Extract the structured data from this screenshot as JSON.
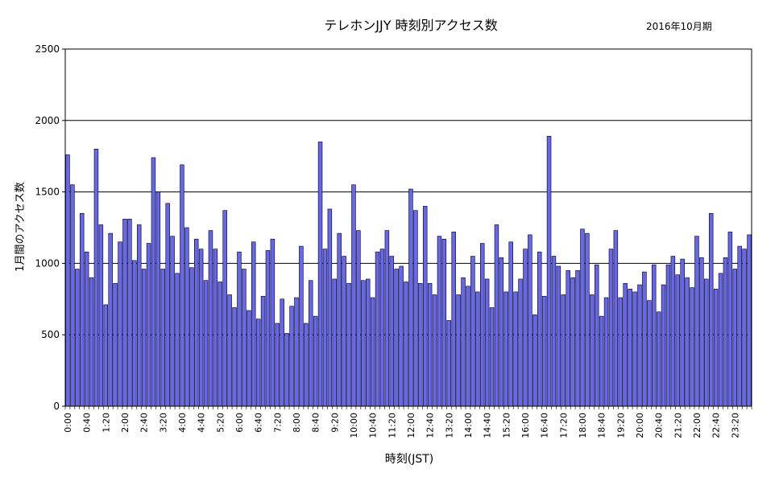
{
  "chart_data": {
    "type": "bar",
    "title": "テレホンJJY  時刻別アクセス数",
    "subtitle": "2016年10月期",
    "xlabel": "時刻(JST)",
    "ylabel": "1月間のアクセス数",
    "ylim": [
      0,
      2500
    ],
    "yticks": [
      0,
      500,
      1000,
      1500,
      2000,
      2500
    ],
    "grid": true,
    "bar_color": "#6666ee",
    "bar_edge_color": "#000000",
    "tick_labels": [
      "0:00",
      "0:40",
      "1:20",
      "2:00",
      "2:40",
      "3:20",
      "4:00",
      "4:40",
      "5:20",
      "6:00",
      "6:40",
      "7:20",
      "8:00",
      "8:40",
      "9:20",
      "10:00",
      "10:40",
      "11:20",
      "12:00",
      "12:40",
      "13:20",
      "14:00",
      "14:40",
      "15:20",
      "16:00",
      "16:40",
      "17:20",
      "18:00",
      "18:40",
      "19:20",
      "20:00",
      "20:40",
      "21:20",
      "22:00",
      "22:40",
      "23:20"
    ],
    "interval_minutes": 10,
    "values": [
      1760,
      1550,
      960,
      1350,
      1080,
      900,
      1800,
      1270,
      710,
      1210,
      860,
      1150,
      1310,
      1310,
      1020,
      1270,
      960,
      1140,
      1740,
      1500,
      960,
      1420,
      1190,
      930,
      1690,
      1250,
      970,
      1170,
      1100,
      880,
      1230,
      1100,
      870,
      1370,
      780,
      690,
      1080,
      960,
      670,
      1150,
      610,
      770,
      1090,
      1170,
      580,
      750,
      510,
      700,
      760,
      1120,
      580,
      880,
      630,
      1850,
      1100,
      1380,
      890,
      1210,
      1050,
      860,
      1550,
      1230,
      880,
      890,
      760,
      1080,
      1100,
      1230,
      1050,
      960,
      980,
      870,
      1520,
      1370,
      860,
      1400,
      860,
      780,
      1190,
      1170,
      600,
      1220,
      780,
      900,
      840,
      1050,
      800,
      1140,
      890,
      690,
      1270,
      1040,
      800,
      1150,
      800,
      890,
      1100,
      1200,
      640,
      1080,
      770,
      1890,
      1050,
      980,
      780,
      950,
      900,
      950,
      1240,
      1210,
      780,
      990,
      630,
      760,
      1100,
      1230,
      760,
      860,
      820,
      800,
      850,
      940,
      740,
      990,
      660,
      850,
      990,
      1050,
      920,
      1030,
      900,
      830,
      1190,
      1040,
      890,
      1350,
      820,
      930,
      1040,
      1220,
      960,
      1120,
      1100,
      1200
    ]
  }
}
